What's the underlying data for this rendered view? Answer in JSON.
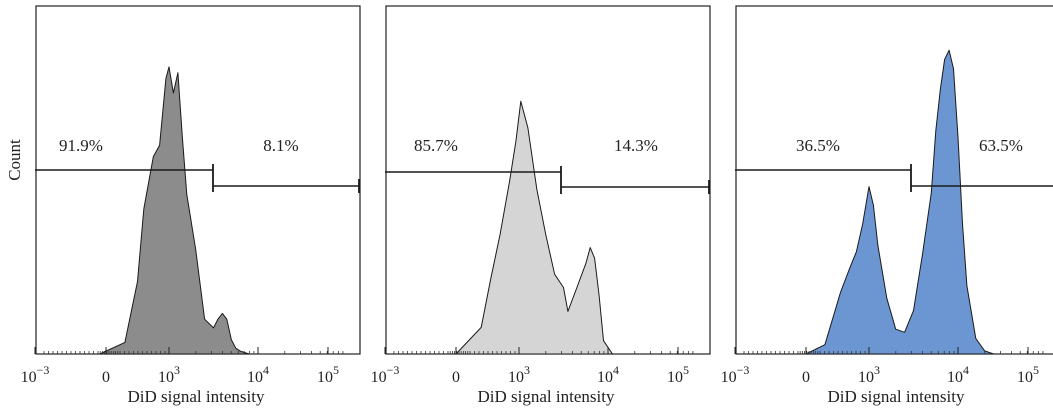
{
  "chart_data": [
    {
      "type": "area",
      "xlabel": "DiD signal intensity",
      "ylabel": "Count",
      "x_scale": "biexponential",
      "x_ticks": [
        {
          "base": "10",
          "exp": "−3"
        },
        {
          "base": "0",
          "exp": ""
        },
        {
          "base": "10",
          "exp": "3"
        },
        {
          "base": "10",
          "exp": "4"
        },
        {
          "base": "10",
          "exp": "5"
        }
      ],
      "fill_color": "#8c8c8c",
      "gates": [
        {
          "label": "91.9%"
        },
        {
          "label": "8.1%"
        }
      ],
      "histogram": {
        "x_log10": [
          1.9,
          2.3,
          2.5,
          2.6,
          2.75,
          2.85,
          2.95,
          3.0,
          3.05,
          3.1,
          3.15,
          3.2,
          3.3,
          3.4,
          3.5,
          3.55,
          3.6,
          3.65,
          3.7,
          3.75,
          3.8,
          3.9
        ],
        "count": [
          0.0,
          0.04,
          0.25,
          0.5,
          0.68,
          0.72,
          0.95,
          0.99,
          0.9,
          0.97,
          0.75,
          0.55,
          0.36,
          0.12,
          0.09,
          0.12,
          0.14,
          0.12,
          0.05,
          0.02,
          0.01,
          0.0
        ]
      }
    },
    {
      "type": "area",
      "xlabel": "DiD signal intensity",
      "ylabel": "",
      "x_scale": "biexponential",
      "x_ticks": [
        {
          "base": "10",
          "exp": "−3"
        },
        {
          "base": "0",
          "exp": ""
        },
        {
          "base": "10",
          "exp": "3"
        },
        {
          "base": "10",
          "exp": "4"
        },
        {
          "base": "10",
          "exp": "5"
        }
      ],
      "fill_color": "#d5d5d5",
      "gates": [
        {
          "label": "85.7%"
        },
        {
          "label": "14.3%"
        }
      ],
      "histogram": {
        "x_log10": [
          2.0,
          2.4,
          2.55,
          2.7,
          2.85,
          2.95,
          3.02,
          3.1,
          3.2,
          3.3,
          3.4,
          3.5,
          3.55,
          3.65,
          3.75,
          3.8,
          3.85,
          3.9,
          3.95,
          4.05
        ],
        "count": [
          0.0,
          0.1,
          0.28,
          0.45,
          0.65,
          0.8,
          0.95,
          0.85,
          0.62,
          0.45,
          0.3,
          0.25,
          0.16,
          0.25,
          0.34,
          0.4,
          0.36,
          0.22,
          0.05,
          0.0
        ]
      }
    },
    {
      "type": "area",
      "xlabel": "DiD signal intensity",
      "ylabel": "",
      "x_scale": "biexponential",
      "x_ticks": [
        {
          "base": "10",
          "exp": "−3"
        },
        {
          "base": "0",
          "exp": ""
        },
        {
          "base": "10",
          "exp": "3"
        },
        {
          "base": "10",
          "exp": "4"
        },
        {
          "base": "10",
          "exp": "5"
        }
      ],
      "fill_color": "#6b96d2",
      "gates": [
        {
          "label": "36.5%"
        },
        {
          "label": "63.5%"
        }
      ],
      "histogram": {
        "x_log10": [
          2.0,
          2.3,
          2.55,
          2.7,
          2.8,
          2.9,
          3.0,
          3.05,
          3.1,
          3.2,
          3.3,
          3.4,
          3.5,
          3.6,
          3.7,
          3.75,
          3.8,
          3.85,
          3.9,
          3.95,
          4.0,
          4.05,
          4.1,
          4.2,
          4.3,
          4.4
        ],
        "count": [
          0.0,
          0.03,
          0.2,
          0.28,
          0.33,
          0.42,
          0.54,
          0.48,
          0.35,
          0.18,
          0.08,
          0.07,
          0.14,
          0.32,
          0.52,
          0.72,
          0.85,
          0.95,
          0.98,
          0.92,
          0.7,
          0.42,
          0.22,
          0.05,
          0.01,
          0.0
        ]
      }
    }
  ]
}
